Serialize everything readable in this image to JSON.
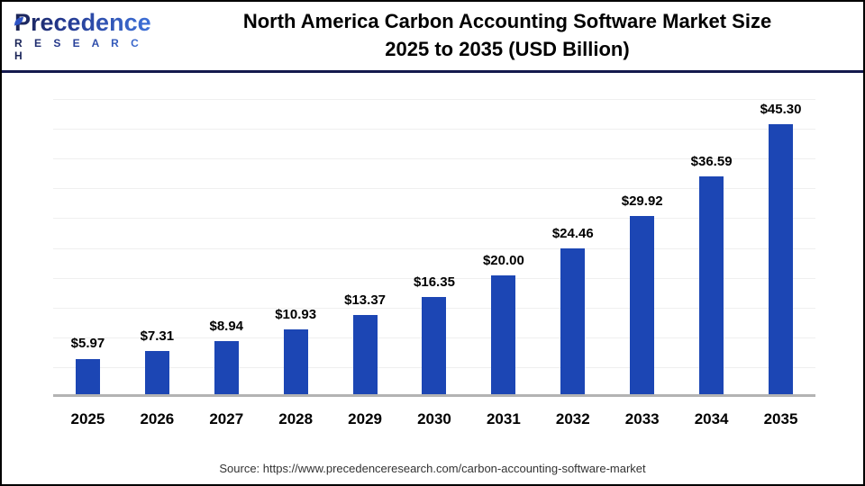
{
  "header": {
    "logo": {
      "brand": "Precedence",
      "brand_sub": "R E S E A R C H"
    },
    "title_line1": "North America Carbon Accounting Software Market Size",
    "title_line2": "2025 to 2035 (USD Billion)"
  },
  "chart_data": {
    "type": "bar",
    "title": "North America Carbon Accounting Software Market Size 2025 to 2035 (USD Billion)",
    "categories": [
      "2025",
      "2026",
      "2027",
      "2028",
      "2029",
      "2030",
      "2031",
      "2032",
      "2033",
      "2034",
      "2035"
    ],
    "values": [
      5.97,
      7.31,
      8.94,
      10.93,
      13.37,
      16.35,
      20.0,
      24.46,
      29.92,
      36.59,
      45.3
    ],
    "value_prefix": "$",
    "value_decimals": 2,
    "unit": "USD Billion",
    "xlabel": "",
    "ylabel": "",
    "ylim": [
      0,
      50
    ],
    "gridline_step": 5,
    "grid": true,
    "legend": false,
    "bar_color": "#1c46b4",
    "baseline_color": "#b3b3b3",
    "gridline_color": "#efefef"
  },
  "footer": {
    "source": "Source: https://www.precedenceresearch.com/carbon-accounting-software-market"
  }
}
